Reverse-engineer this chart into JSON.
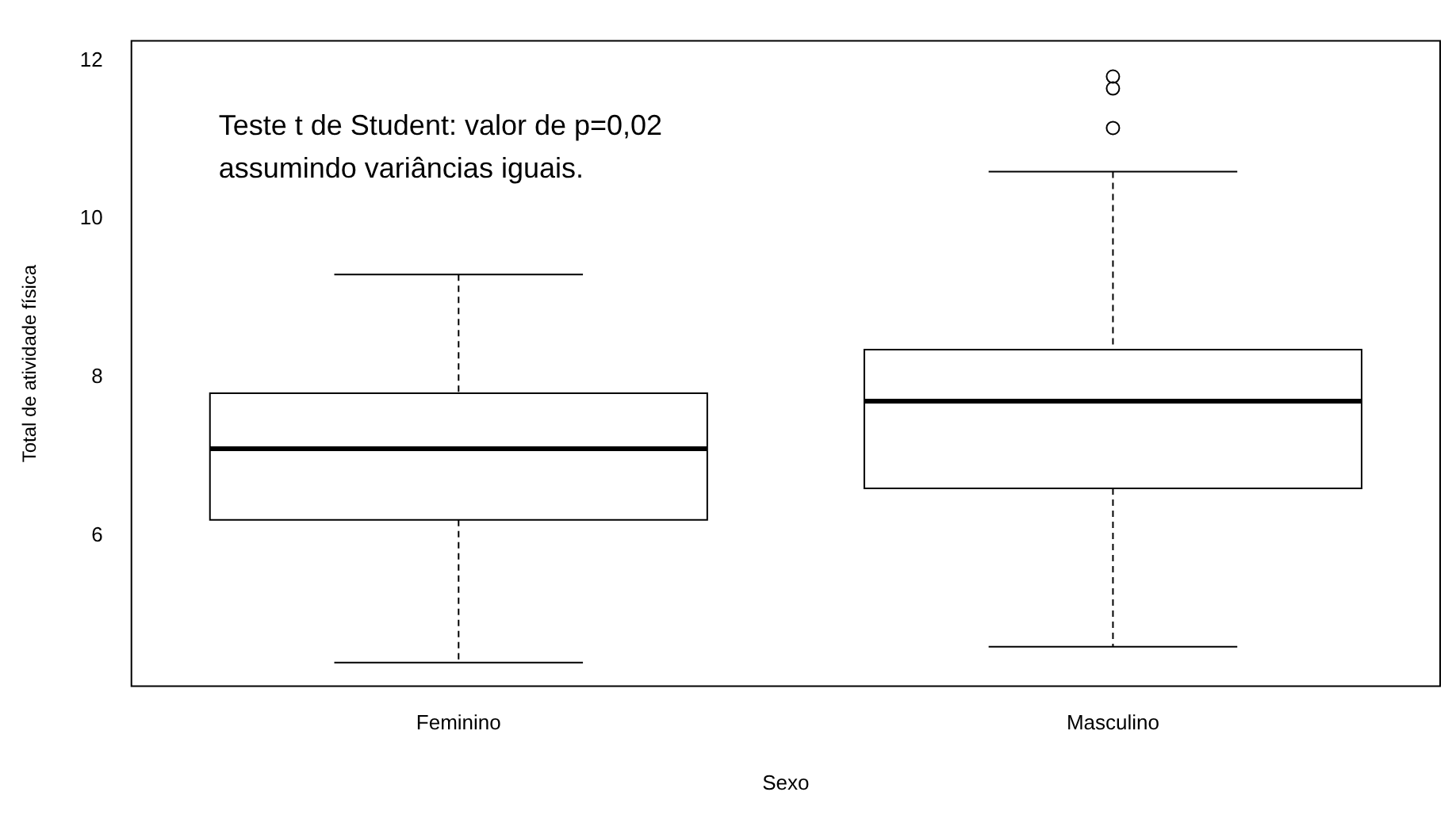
{
  "chart_data": {
    "type": "box",
    "xlabel": "Sexo",
    "ylabel": "Total de atividade física",
    "categories": [
      "Feminino",
      "Masculino"
    ],
    "boxes": [
      {
        "low": 4.4,
        "q1": 6.2,
        "median": 7.1,
        "q3": 7.8,
        "high": 9.3
      },
      {
        "low": 4.6,
        "q1": 6.6,
        "median": 7.7,
        "q3": 8.35,
        "high": 10.6,
        "outliers": [
          11.15,
          11.65,
          11.8
        ]
      }
    ],
    "ylim": [
      4.1,
      12.25
    ],
    "yticks": [
      6,
      8,
      10,
      12
    ],
    "grid": false,
    "annotations": [
      "Teste t de Student: valor de p=0,02 assumindo variâncias iguais."
    ]
  }
}
